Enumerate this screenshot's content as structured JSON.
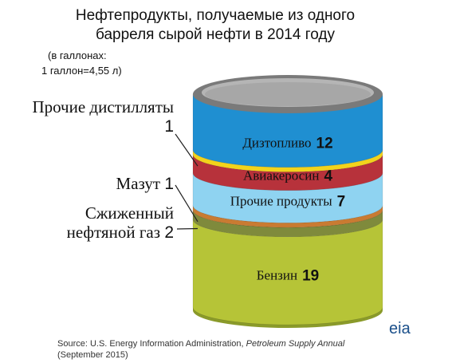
{
  "chart_data": {
    "type": "barrel",
    "title": [
      "Нефтепродукты, получаемые из одного",
      "барреля сырой нефти в 2014 году"
    ],
    "note": [
      "(в галлонах:",
      "1 галлон=4,55 л)"
    ],
    "categories": [
      "Бензин",
      "Сжиженный нефтяной газ",
      "Мазут",
      "Прочие продукты",
      "Авиакеросин",
      "Прочие дистилляты",
      "Дизтопливо"
    ],
    "values": [
      19,
      2,
      1,
      7,
      4,
      1,
      12
    ],
    "colors": [
      "#b6c437",
      "#7f8a3c",
      "#c97b32",
      "#8fd3f1",
      "#b7323b",
      "#f2d31c",
      "#1f8fd1"
    ],
    "source": [
      "Source: U.S. Energy Information Administration,",
      "Petroleum Supply Annual",
      "(September 2015)"
    ],
    "logo": "eia"
  }
}
